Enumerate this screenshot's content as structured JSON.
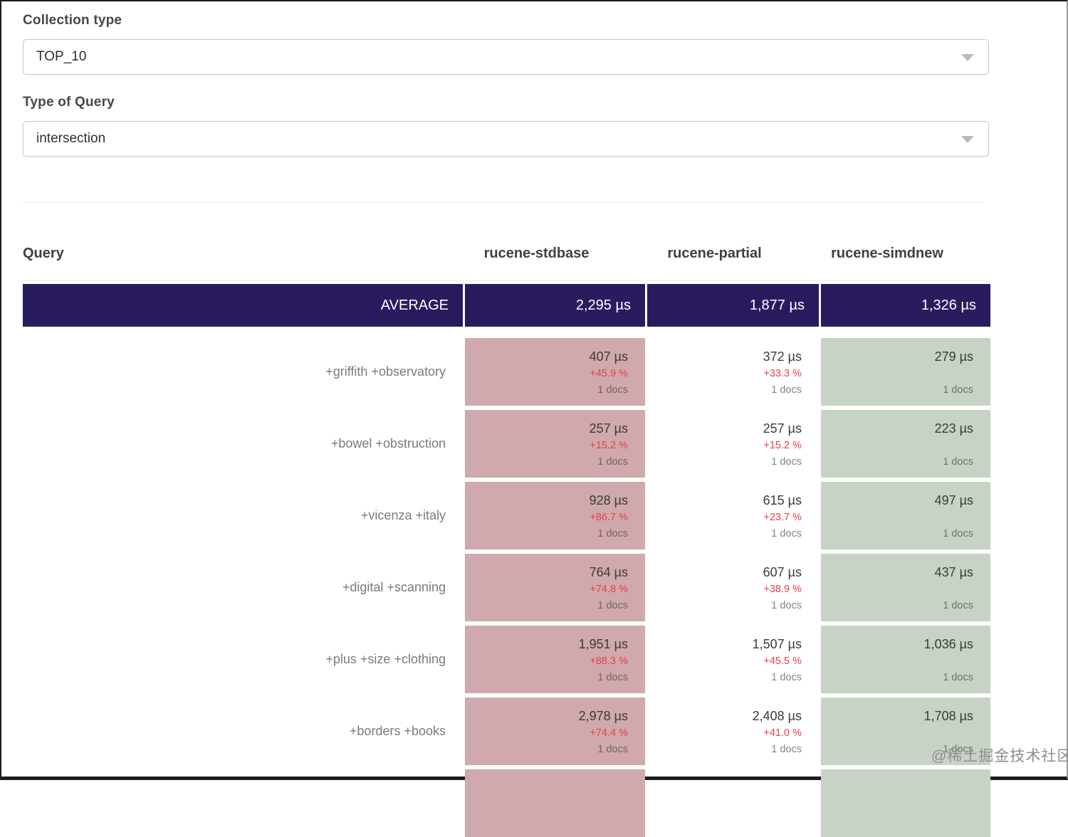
{
  "filters": {
    "collection_type": {
      "label": "Collection type",
      "value": "TOP_10"
    },
    "query_type": {
      "label": "Type of Query",
      "value": "intersection"
    }
  },
  "table": {
    "query_header": "Query",
    "columns": [
      "rucene-stdbase",
      "rucene-partial",
      "rucene-simdnew"
    ],
    "average": {
      "label": "AVERAGE",
      "values": [
        "2,295 µs",
        "1,877 µs",
        "1,326 µs"
      ]
    },
    "rows": [
      {
        "query": "+griffith +observatory",
        "stdbase": {
          "value": "407 µs",
          "delta": "+45.9 %",
          "docs": "1 docs"
        },
        "partial": {
          "value": "372 µs",
          "delta": "+33.3 %",
          "docs": "1 docs"
        },
        "simdnew": {
          "value": "279 µs",
          "delta": "",
          "docs": "1 docs"
        }
      },
      {
        "query": "+bowel +obstruction",
        "stdbase": {
          "value": "257 µs",
          "delta": "+15.2 %",
          "docs": "1 docs"
        },
        "partial": {
          "value": "257 µs",
          "delta": "+15.2 %",
          "docs": "1 docs"
        },
        "simdnew": {
          "value": "223 µs",
          "delta": "",
          "docs": "1 docs"
        }
      },
      {
        "query": "+vicenza +italy",
        "stdbase": {
          "value": "928 µs",
          "delta": "+86.7 %",
          "docs": "1 docs"
        },
        "partial": {
          "value": "615 µs",
          "delta": "+23.7 %",
          "docs": "1 docs"
        },
        "simdnew": {
          "value": "497 µs",
          "delta": "",
          "docs": "1 docs"
        }
      },
      {
        "query": "+digital +scanning",
        "stdbase": {
          "value": "764 µs",
          "delta": "+74.8 %",
          "docs": "1 docs"
        },
        "partial": {
          "value": "607 µs",
          "delta": "+38.9 %",
          "docs": "1 docs"
        },
        "simdnew": {
          "value": "437 µs",
          "delta": "",
          "docs": "1 docs"
        }
      },
      {
        "query": "+plus +size +clothing",
        "stdbase": {
          "value": "1,951 µs",
          "delta": "+88.3 %",
          "docs": "1 docs"
        },
        "partial": {
          "value": "1,507 µs",
          "delta": "+45.5 %",
          "docs": "1 docs"
        },
        "simdnew": {
          "value": "1,036 µs",
          "delta": "",
          "docs": "1 docs"
        }
      },
      {
        "query": "+borders +books",
        "stdbase": {
          "value": "2,978 µs",
          "delta": "+74.4 %",
          "docs": "1 docs"
        },
        "partial": {
          "value": "2,408 µs",
          "delta": "+41.0 %",
          "docs": "1 docs"
        },
        "simdnew": {
          "value": "1,708 µs",
          "delta": "",
          "docs": "1 docs"
        }
      }
    ]
  },
  "watermark": "@稀土掘金技术社区",
  "colors": {
    "average_row": "#2a1b5f",
    "stdbase_cell": "#cfa9ac",
    "simdnew_cell": "#c7d3c4",
    "delta_text": "#e5404b"
  }
}
